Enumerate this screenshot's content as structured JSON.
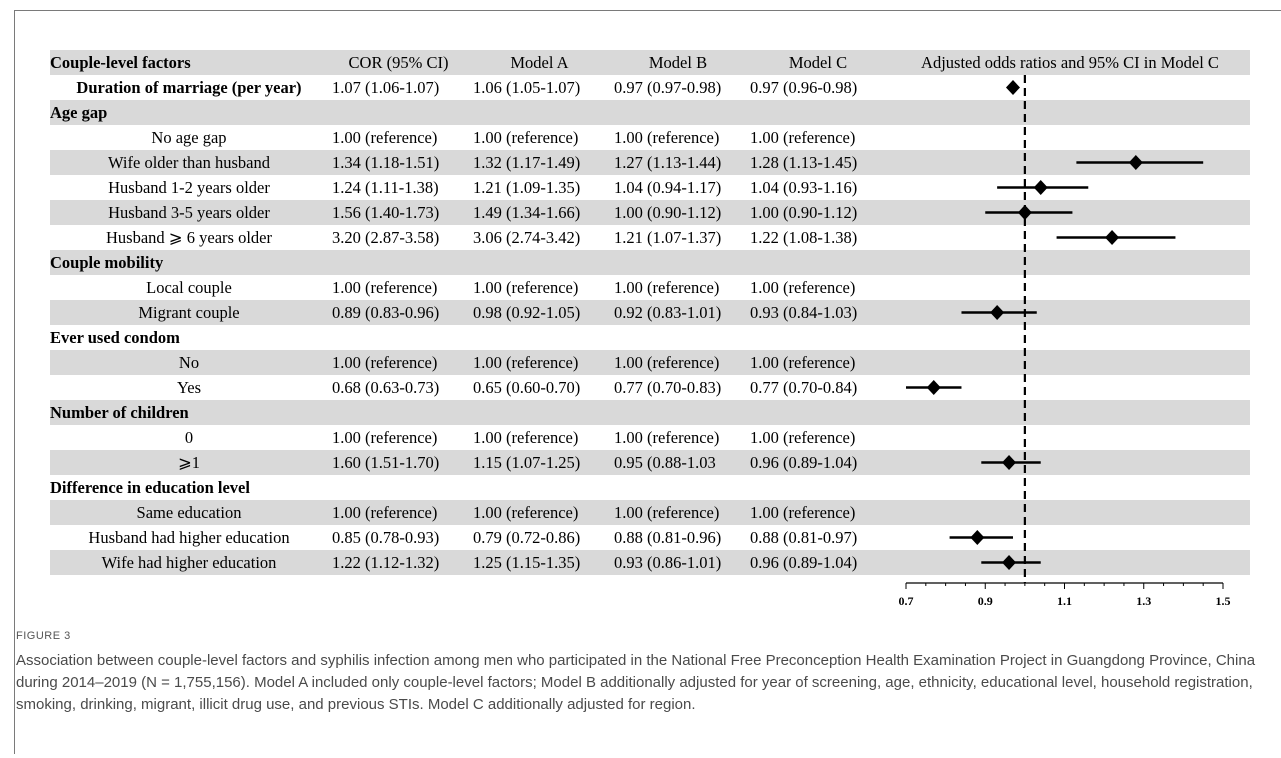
{
  "table": {
    "headers": [
      "Couple-level factors",
      "COR (95% CI)",
      "Model A",
      "Model B",
      "Model C",
      "Adjusted odds ratios and 95% CI  in Model C"
    ],
    "rows": [
      {
        "label": "Duration of marriage (per year)",
        "kind": "factor",
        "cor": "1.07 (1.06-1.07)",
        "model_a": "1.06 (1.05-1.07)",
        "model_b": "0.97 (0.97-0.98)",
        "model_c": "0.97 (0.96-0.98)"
      },
      {
        "label": "Age gap",
        "kind": "group",
        "cor": "",
        "model_a": "",
        "model_b": "",
        "model_c": ""
      },
      {
        "label": "No age gap",
        "kind": "level",
        "cor": "1.00 (reference)",
        "model_a": "1.00 (reference)",
        "model_b": "1.00 (reference)",
        "model_c": "1.00 (reference)"
      },
      {
        "label": "Wife older than husband",
        "kind": "level",
        "cor": "1.34 (1.18-1.51)",
        "model_a": "1.32 (1.17-1.49)",
        "model_b": "1.27 (1.13-1.44)",
        "model_c": "1.28 (1.13-1.45)"
      },
      {
        "label": "Husband 1-2 years older",
        "kind": "level",
        "cor": "1.24 (1.11-1.38)",
        "model_a": "1.21 (1.09-1.35)",
        "model_b": "1.04 (0.94-1.17)",
        "model_c": "1.04 (0.93-1.16)"
      },
      {
        "label": "Husband 3-5 years older",
        "kind": "level",
        "cor": "1.56 (1.40-1.73)",
        "model_a": "1.49 (1.34-1.66)",
        "model_b": "1.00 (0.90-1.12)",
        "model_c": "1.00 (0.90-1.12)"
      },
      {
        "label": "Husband ⩾ 6 years older",
        "kind": "level",
        "cor": "3.20 (2.87-3.58)",
        "model_a": "3.06 (2.74-3.42)",
        "model_b": "1.21 (1.07-1.37)",
        "model_c": "1.22 (1.08-1.38)"
      },
      {
        "label": "Couple mobility",
        "kind": "group",
        "cor": "",
        "model_a": "",
        "model_b": "",
        "model_c": ""
      },
      {
        "label": "Local couple",
        "kind": "level",
        "cor": "1.00 (reference)",
        "model_a": "1.00 (reference)",
        "model_b": "1.00 (reference)",
        "model_c": "1.00 (reference)"
      },
      {
        "label": "Migrant couple",
        "kind": "level",
        "cor": "0.89 (0.83-0.96)",
        "model_a": "0.98 (0.92-1.05)",
        "model_b": "0.92 (0.83-1.01)",
        "model_c": "0.93 (0.84-1.03)"
      },
      {
        "label": "Ever used condom",
        "kind": "group",
        "cor": "",
        "model_a": "",
        "model_b": "",
        "model_c": ""
      },
      {
        "label": "No",
        "kind": "level",
        "cor": "1.00 (reference)",
        "model_a": "1.00 (reference)",
        "model_b": "1.00 (reference)",
        "model_c": "1.00 (reference)"
      },
      {
        "label": "Yes",
        "kind": "level",
        "cor": "0.68 (0.63-0.73)",
        "model_a": "0.65 (0.60-0.70)",
        "model_b": "0.77 (0.70-0.83)",
        "model_c": "0.77 (0.70-0.84)"
      },
      {
        "label": "Number of children",
        "kind": "group",
        "cor": "",
        "model_a": "",
        "model_b": "",
        "model_c": ""
      },
      {
        "label": "0",
        "kind": "level",
        "cor": "1.00 (reference)",
        "model_a": "1.00 (reference)",
        "model_b": "1.00 (reference)",
        "model_c": "1.00 (reference)"
      },
      {
        "label": "⩾1",
        "kind": "level",
        "cor": "1.60 (1.51-1.70)",
        "model_a": "1.15 (1.07-1.25)",
        "model_b": "0.95 (0.88-1.03",
        "model_c": "0.96 (0.89-1.04)"
      },
      {
        "label": "Difference in education level",
        "kind": "group",
        "cor": "",
        "model_a": "",
        "model_b": "",
        "model_c": ""
      },
      {
        "label": "Same education",
        "kind": "level",
        "cor": "1.00 (reference)",
        "model_a": "1.00 (reference)",
        "model_b": "1.00 (reference)",
        "model_c": "1.00 (reference)"
      },
      {
        "label": "Husband had higher education",
        "kind": "level",
        "cor": "0.85 (0.78-0.93)",
        "model_a": "0.79 (0.72-0.86)",
        "model_b": "0.88 (0.81-0.96)",
        "model_c": "0.88 (0.81-0.97)"
      },
      {
        "label": "Wife had higher education",
        "kind": "level",
        "cor": "1.22 (1.12-1.32)",
        "model_a": "1.25 (1.15-1.35)",
        "model_b": "0.93 (0.86-1.01)",
        "model_c": "0.96 (0.89-1.04)"
      }
    ]
  },
  "chart_data": {
    "type": "scatter",
    "title": "Adjusted odds ratios and 95% CI  in Model C",
    "xlabel": "",
    "ylabel": "",
    "xlim": [
      0.7,
      1.5
    ],
    "x_ticks": [
      0.7,
      0.9,
      1.1,
      1.3,
      1.5
    ],
    "x_tick_labels": [
      "0.7",
      "0.9",
      "1.1",
      "1.3",
      "1.5"
    ],
    "reference_line": 1.0,
    "reference_line_style": "dashed",
    "marker": "diamond",
    "color": "#000000",
    "grid": false,
    "points": [
      {
        "row": 0,
        "label": "Duration of marriage (per year)",
        "or": 0.97,
        "lo": 0.96,
        "hi": 0.98
      },
      {
        "row": 3,
        "label": "Wife older than husband",
        "or": 1.28,
        "lo": 1.13,
        "hi": 1.45
      },
      {
        "row": 4,
        "label": "Husband 1-2 years older",
        "or": 1.04,
        "lo": 0.93,
        "hi": 1.16
      },
      {
        "row": 5,
        "label": "Husband 3-5 years older",
        "or": 1.0,
        "lo": 0.9,
        "hi": 1.12
      },
      {
        "row": 6,
        "label": "Husband ⩾ 6 years older",
        "or": 1.22,
        "lo": 1.08,
        "hi": 1.38
      },
      {
        "row": 9,
        "label": "Migrant couple",
        "or": 0.93,
        "lo": 0.84,
        "hi": 1.03
      },
      {
        "row": 12,
        "label": "Yes",
        "or": 0.77,
        "lo": 0.7,
        "hi": 0.84
      },
      {
        "row": 15,
        "label": "⩾1",
        "or": 0.96,
        "lo": 0.89,
        "hi": 1.04
      },
      {
        "row": 18,
        "label": "Husband had higher education",
        "or": 0.88,
        "lo": 0.81,
        "hi": 0.97
      },
      {
        "row": 19,
        "label": "Wife had higher education",
        "or": 0.96,
        "lo": 0.89,
        "hi": 1.04
      }
    ]
  },
  "caption": {
    "label": "FIGURE 3",
    "text": "Association between couple-level factors and syphilis infection among men who participated in the National Free Preconception Health Examination Project in Guangdong Province, China during 2014–2019 (N = 1,755,156). Model A included only couple-level factors; Model B additionally adjusted for year of screening, age, ethnicity, educational level, household registration, smoking, drinking, migrant, illicit drug use, and previous STIs. Model C additionally adjusted for region."
  }
}
